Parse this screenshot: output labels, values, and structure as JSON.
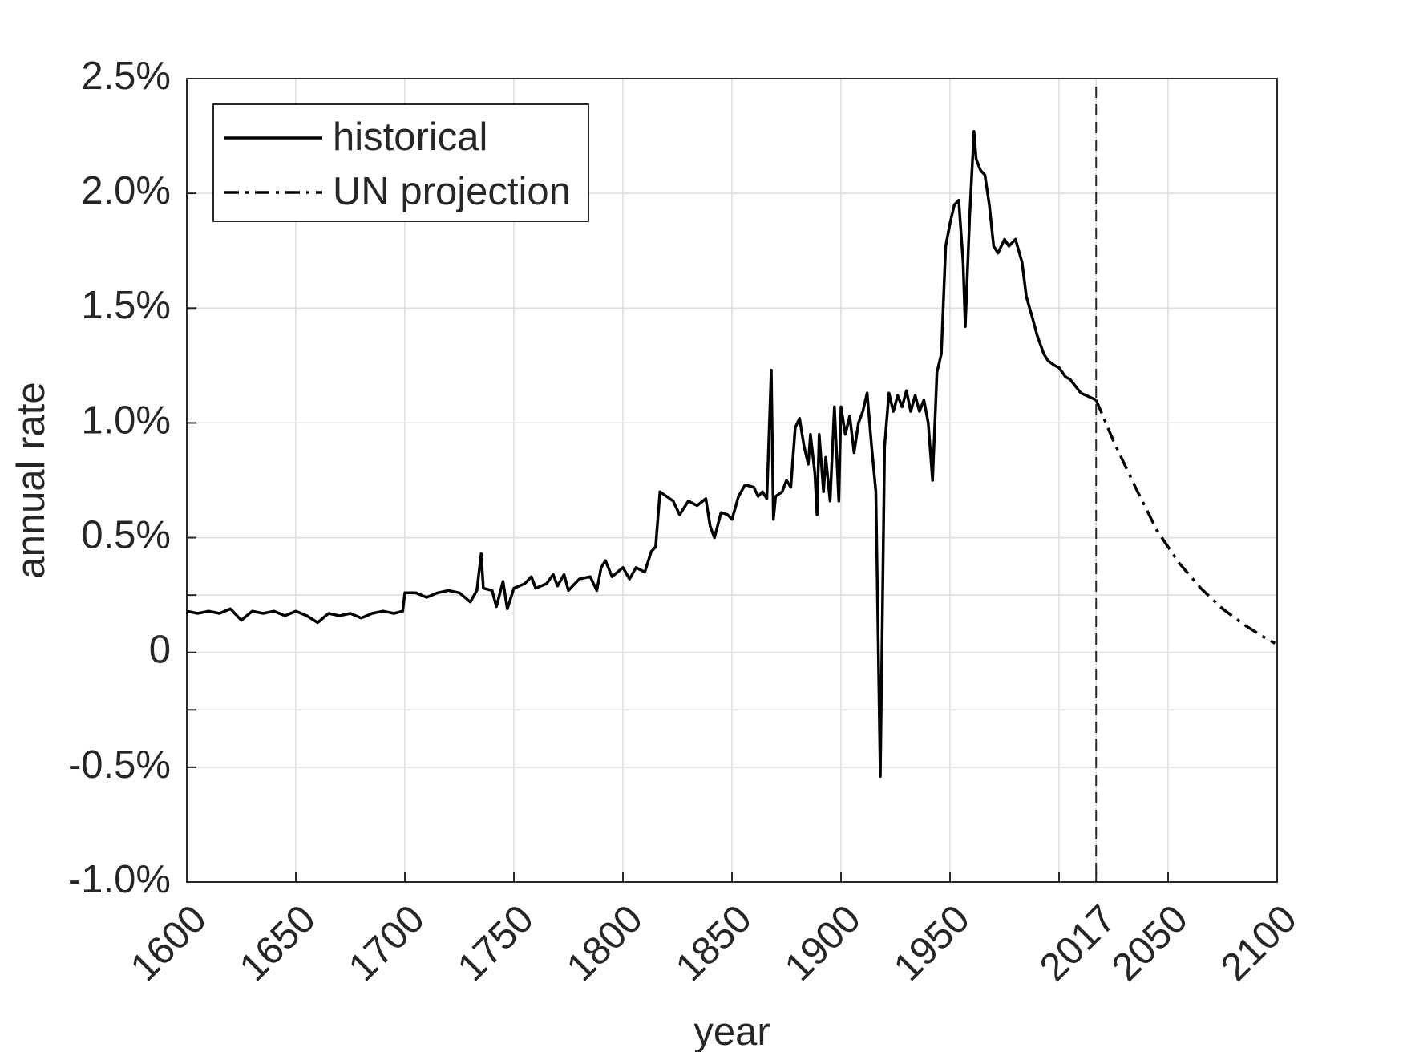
{
  "chart_data": {
    "type": "line",
    "xlabel": "year",
    "ylabel": "annual rate",
    "xlim": [
      1600,
      2100
    ],
    "ylim": [
      -1.0,
      2.5
    ],
    "xticks": [
      1600,
      1650,
      1700,
      1750,
      1800,
      1850,
      1900,
      1950,
      {
        "value": 2000,
        "label": null
      },
      2017,
      2050,
      2100
    ],
    "yticks": [
      {
        "value": -1.0,
        "label": "-1.0%"
      },
      {
        "value": -0.5,
        "label": "-0.5%"
      },
      {
        "value": -0.25,
        "label": null
      },
      0,
      {
        "value": 0.25,
        "label": null
      },
      {
        "value": 0.5,
        "label": "0.5%"
      },
      {
        "value": 1.0,
        "label": "1.0%"
      },
      {
        "value": 1.5,
        "label": "1.5%"
      },
      {
        "value": 2.0,
        "label": "2.0%"
      },
      {
        "value": 2.5,
        "label": "2.5%"
      }
    ],
    "grid": true,
    "legend": "upper left",
    "vline": 2017,
    "series": [
      {
        "name": "historical",
        "color": "#000000",
        "style": "solid",
        "x": [
          1600,
          1605,
          1610,
          1615,
          1620,
          1625,
          1630,
          1635,
          1640,
          1645,
          1650,
          1655,
          1660,
          1665,
          1670,
          1675,
          1680,
          1685,
          1690,
          1695,
          1699,
          1700,
          1705,
          1710,
          1715,
          1720,
          1725,
          1730,
          1733,
          1735,
          1736,
          1740,
          1742,
          1745,
          1747,
          1750,
          1755,
          1758,
          1760,
          1765,
          1768,
          1770,
          1773,
          1775,
          1780,
          1785,
          1788,
          1790,
          1792,
          1795,
          1800,
          1803,
          1806,
          1810,
          1813,
          1815,
          1817,
          1820,
          1823,
          1826,
          1830,
          1834,
          1838,
          1840,
          1842,
          1845,
          1848,
          1850,
          1853,
          1856,
          1860,
          1862,
          1864,
          1866,
          1868,
          1869,
          1870,
          1873,
          1875,
          1877,
          1879,
          1881,
          1883,
          1885,
          1886,
          1888,
          1889,
          1890,
          1892,
          1893,
          1895,
          1897,
          1899,
          1900,
          1902,
          1904,
          1906,
          1908,
          1910,
          1912,
          1914,
          1916,
          1918,
          1920,
          1922,
          1924,
          1926,
          1928,
          1930,
          1932,
          1934,
          1936,
          1938,
          1940,
          1942,
          1944,
          1946,
          1948,
          1950,
          1952,
          1954,
          1956,
          1957,
          1959,
          1961,
          1962,
          1964,
          1966,
          1968,
          1970,
          1972,
          1975,
          1977,
          1980,
          1983,
          1985,
          1988,
          1990,
          1993,
          1995,
          1998,
          2000,
          2003,
          2005,
          2010,
          2017
        ],
        "values": [
          0.18,
          0.17,
          0.18,
          0.17,
          0.19,
          0.14,
          0.18,
          0.17,
          0.18,
          0.16,
          0.18,
          0.16,
          0.13,
          0.17,
          0.16,
          0.17,
          0.15,
          0.17,
          0.18,
          0.17,
          0.18,
          0.26,
          0.26,
          0.24,
          0.26,
          0.27,
          0.26,
          0.22,
          0.27,
          0.43,
          0.28,
          0.27,
          0.2,
          0.31,
          0.19,
          0.28,
          0.3,
          0.33,
          0.28,
          0.3,
          0.34,
          0.29,
          0.34,
          0.27,
          0.32,
          0.33,
          0.27,
          0.37,
          0.4,
          0.33,
          0.37,
          0.32,
          0.37,
          0.35,
          0.44,
          0.46,
          0.7,
          0.68,
          0.66,
          0.6,
          0.66,
          0.64,
          0.67,
          0.55,
          0.5,
          0.61,
          0.6,
          0.58,
          0.68,
          0.73,
          0.72,
          0.68,
          0.7,
          0.67,
          1.23,
          0.58,
          0.68,
          0.7,
          0.75,
          0.72,
          0.98,
          1.02,
          0.9,
          0.82,
          0.95,
          0.78,
          0.6,
          0.95,
          0.7,
          0.85,
          0.66,
          1.07,
          0.66,
          1.07,
          0.95,
          1.03,
          0.87,
          1.0,
          1.05,
          1.13,
          0.9,
          0.7,
          -0.54,
          0.9,
          1.13,
          1.05,
          1.12,
          1.07,
          1.14,
          1.05,
          1.12,
          1.05,
          1.1,
          1.0,
          0.75,
          1.22,
          1.3,
          1.77,
          1.87,
          1.95,
          1.97,
          1.7,
          1.42,
          1.9,
          2.27,
          2.15,
          2.1,
          2.08,
          1.95,
          1.77,
          1.74,
          1.8,
          1.77,
          1.8,
          1.7,
          1.55,
          1.45,
          1.38,
          1.3,
          1.27,
          1.25,
          1.24,
          1.2,
          1.19,
          1.13,
          1.1
        ]
      },
      {
        "name": "UN projection",
        "color": "#000000",
        "style": "dashdot",
        "x": [
          2017,
          2025,
          2035,
          2045,
          2055,
          2065,
          2075,
          2085,
          2095,
          2099
        ],
        "values": [
          1.1,
          0.92,
          0.72,
          0.53,
          0.39,
          0.28,
          0.19,
          0.12,
          0.06,
          0.04
        ]
      }
    ]
  }
}
